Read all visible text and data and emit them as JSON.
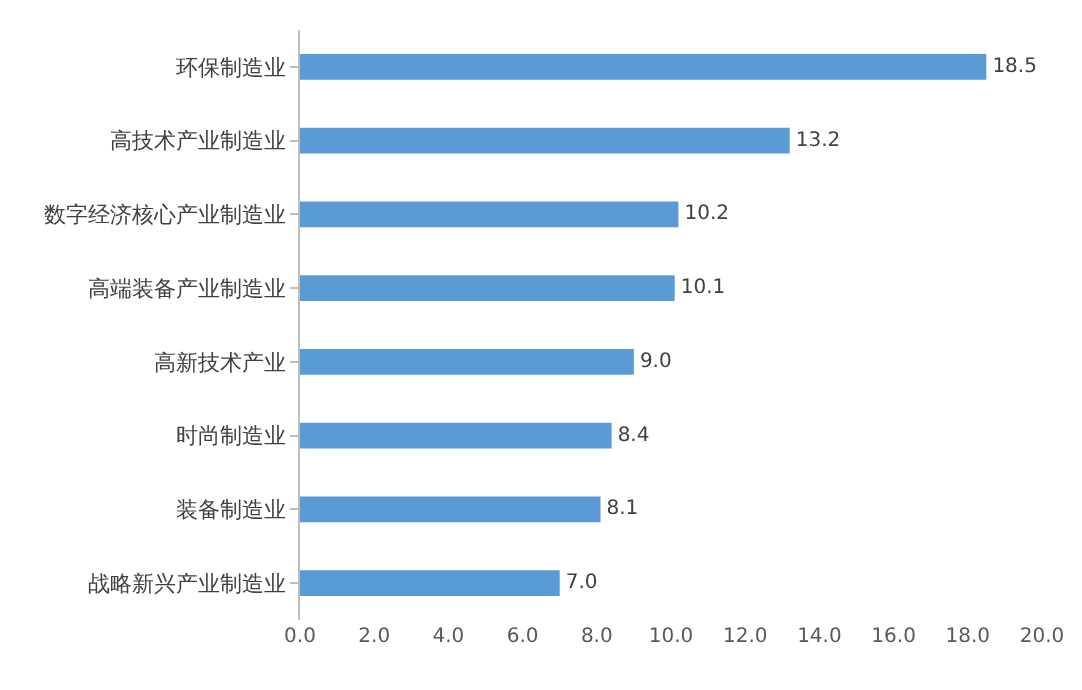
{
  "chart_data": {
    "type": "bar",
    "orientation": "horizontal",
    "categories": [
      "环保制造业",
      "高技术产业制造业",
      "数字经济核心产业制造业",
      "高端装备产业制造业",
      "高新技术产业",
      "时尚制造业",
      "装备制造业",
      "战略新兴产业制造业"
    ],
    "values": [
      18.5,
      13.2,
      10.2,
      10.1,
      9.0,
      8.4,
      8.1,
      7.0
    ],
    "value_labels": [
      "18.5",
      "13.2",
      "10.2",
      "10.1",
      "9.0",
      "8.4",
      "8.1",
      "7.0"
    ],
    "color": "#5b9bd5",
    "xlim": [
      0,
      20
    ],
    "xticks": [
      {
        "value": 0,
        "label": "0.0"
      },
      {
        "value": 2,
        "label": "2.0"
      },
      {
        "value": 4,
        "label": "4.0"
      },
      {
        "value": 6,
        "label": "6.0"
      },
      {
        "value": 8,
        "label": "8.0"
      },
      {
        "value": 10,
        "label": "10.0"
      },
      {
        "value": 12,
        "label": "12.0"
      },
      {
        "value": 14,
        "label": "14.0"
      },
      {
        "value": 16,
        "label": "16.0"
      },
      {
        "value": 18,
        "label": "18.0"
      },
      {
        "value": 20,
        "label": "20.0"
      }
    ],
    "grid": false,
    "legend": false
  }
}
